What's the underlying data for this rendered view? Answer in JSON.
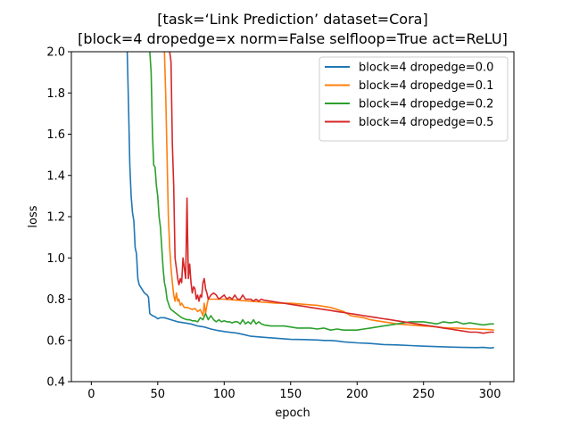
{
  "chart_data": {
    "type": "line",
    "title": "[task=‘Link Prediction’ dataset=Cora]",
    "subtitle": "[block=4 dropedge=x norm=False selfloop=True act=ReLU]",
    "xlabel": "epoch",
    "ylabel": "loss",
    "xlim": [
      -15,
      318
    ],
    "ylim": [
      0.4,
      2.0
    ],
    "xticks": [
      0,
      50,
      100,
      150,
      200,
      250,
      300
    ],
    "yticks": [
      0.4,
      0.6,
      0.8,
      1.0,
      1.2,
      1.4,
      1.6,
      1.8,
      2.0
    ],
    "ytick_labels": [
      "0.4",
      "0.6",
      "0.8",
      "1.0",
      "1.2",
      "1.4",
      "1.6",
      "1.8",
      "2.0"
    ],
    "grid": false,
    "legend_position": "top-right",
    "series": [
      {
        "name": "block=4 dropedge=0.0",
        "color": "#1f77b4",
        "points": [
          [
            27,
            2.0
          ],
          [
            28,
            1.75
          ],
          [
            29,
            1.45
          ],
          [
            30,
            1.3
          ],
          [
            31,
            1.22
          ],
          [
            32,
            1.18
          ],
          [
            33,
            1.05
          ],
          [
            34,
            1.02
          ],
          [
            35,
            0.9
          ],
          [
            36,
            0.87
          ],
          [
            38,
            0.85
          ],
          [
            40,
            0.83
          ],
          [
            42,
            0.82
          ],
          [
            43,
            0.81
          ],
          [
            44,
            0.73
          ],
          [
            46,
            0.72
          ],
          [
            48,
            0.715
          ],
          [
            50,
            0.705
          ],
          [
            52,
            0.71
          ],
          [
            55,
            0.71
          ],
          [
            60,
            0.7
          ],
          [
            65,
            0.69
          ],
          [
            70,
            0.685
          ],
          [
            75,
            0.68
          ],
          [
            80,
            0.67
          ],
          [
            85,
            0.665
          ],
          [
            90,
            0.655
          ],
          [
            95,
            0.648
          ],
          [
            100,
            0.643
          ],
          [
            110,
            0.635
          ],
          [
            115,
            0.628
          ],
          [
            120,
            0.62
          ],
          [
            130,
            0.615
          ],
          [
            140,
            0.61
          ],
          [
            150,
            0.605
          ],
          [
            160,
            0.604
          ],
          [
            170,
            0.602
          ],
          [
            175,
            0.6
          ],
          [
            180,
            0.6
          ],
          [
            185,
            0.597
          ],
          [
            190,
            0.593
          ],
          [
            200,
            0.588
          ],
          [
            210,
            0.585
          ],
          [
            220,
            0.58
          ],
          [
            230,
            0.578
          ],
          [
            240,
            0.575
          ],
          [
            250,
            0.572
          ],
          [
            260,
            0.57
          ],
          [
            270,
            0.568
          ],
          [
            280,
            0.566
          ],
          [
            290,
            0.565
          ],
          [
            295,
            0.566
          ],
          [
            300,
            0.563
          ],
          [
            303,
            0.565
          ]
        ]
      },
      {
        "name": "block=4 dropedge=0.1",
        "color": "#ff7f0e",
        "points": [
          [
            55,
            2.0
          ],
          [
            56,
            1.78
          ],
          [
            57,
            1.5
          ],
          [
            58,
            1.2
          ],
          [
            59,
            1.05
          ],
          [
            60,
            0.95
          ],
          [
            61,
            0.88
          ],
          [
            62,
            0.82
          ],
          [
            63,
            0.79
          ],
          [
            64,
            0.83
          ],
          [
            65,
            0.79
          ],
          [
            66,
            0.8
          ],
          [
            67,
            0.77
          ],
          [
            68,
            0.78
          ],
          [
            70,
            0.76
          ],
          [
            72,
            0.76
          ],
          [
            74,
            0.755
          ],
          [
            76,
            0.75
          ],
          [
            78,
            0.755
          ],
          [
            80,
            0.74
          ],
          [
            82,
            0.75
          ],
          [
            84,
            0.72
          ],
          [
            85,
            0.78
          ],
          [
            86,
            0.73
          ],
          [
            87,
            0.77
          ],
          [
            88,
            0.8
          ],
          [
            90,
            0.8
          ],
          [
            95,
            0.8
          ],
          [
            100,
            0.8
          ],
          [
            110,
            0.795
          ],
          [
            120,
            0.79
          ],
          [
            130,
            0.785
          ],
          [
            140,
            0.78
          ],
          [
            150,
            0.78
          ],
          [
            160,
            0.775
          ],
          [
            170,
            0.77
          ],
          [
            180,
            0.76
          ],
          [
            190,
            0.74
          ],
          [
            195,
            0.72
          ],
          [
            200,
            0.715
          ],
          [
            205,
            0.71
          ],
          [
            210,
            0.7
          ],
          [
            215,
            0.695
          ],
          [
            220,
            0.69
          ],
          [
            225,
            0.685
          ],
          [
            230,
            0.68
          ],
          [
            235,
            0.677
          ],
          [
            240,
            0.675
          ],
          [
            245,
            0.672
          ],
          [
            250,
            0.67
          ],
          [
            255,
            0.668
          ],
          [
            260,
            0.665
          ],
          [
            265,
            0.662
          ],
          [
            270,
            0.66
          ],
          [
            275,
            0.66
          ],
          [
            280,
            0.658
          ],
          [
            285,
            0.656
          ],
          [
            290,
            0.655
          ],
          [
            295,
            0.654
          ],
          [
            300,
            0.652
          ],
          [
            303,
            0.65
          ]
        ]
      },
      {
        "name": "block=4 dropedge=0.2",
        "color": "#2ca02c",
        "points": [
          [
            44,
            2.0
          ],
          [
            45,
            1.9
          ],
          [
            46,
            1.6
          ],
          [
            47,
            1.45
          ],
          [
            48,
            1.44
          ],
          [
            49,
            1.35
          ],
          [
            50,
            1.3
          ],
          [
            51,
            1.2
          ],
          [
            52,
            1.15
          ],
          [
            53,
            1.05
          ],
          [
            54,
            0.95
          ],
          [
            55,
            0.88
          ],
          [
            56,
            0.85
          ],
          [
            57,
            0.8
          ],
          [
            58,
            0.78
          ],
          [
            59,
            0.76
          ],
          [
            60,
            0.75
          ],
          [
            62,
            0.74
          ],
          [
            64,
            0.73
          ],
          [
            66,
            0.72
          ],
          [
            68,
            0.71
          ],
          [
            70,
            0.705
          ],
          [
            72,
            0.7
          ],
          [
            74,
            0.7
          ],
          [
            76,
            0.695
          ],
          [
            78,
            0.695
          ],
          [
            80,
            0.69
          ],
          [
            82,
            0.71
          ],
          [
            84,
            0.7
          ],
          [
            86,
            0.73
          ],
          [
            88,
            0.7
          ],
          [
            90,
            0.72
          ],
          [
            92,
            0.7
          ],
          [
            94,
            0.69
          ],
          [
            96,
            0.7
          ],
          [
            98,
            0.69
          ],
          [
            100,
            0.695
          ],
          [
            102,
            0.69
          ],
          [
            104,
            0.69
          ],
          [
            106,
            0.685
          ],
          [
            108,
            0.69
          ],
          [
            110,
            0.69
          ],
          [
            112,
            0.68
          ],
          [
            114,
            0.7
          ],
          [
            116,
            0.68
          ],
          [
            118,
            0.69
          ],
          [
            120,
            0.68
          ],
          [
            122,
            0.7
          ],
          [
            124,
            0.68
          ],
          [
            126,
            0.69
          ],
          [
            128,
            0.68
          ],
          [
            130,
            0.675
          ],
          [
            135,
            0.67
          ],
          [
            140,
            0.67
          ],
          [
            145,
            0.67
          ],
          [
            150,
            0.665
          ],
          [
            155,
            0.66
          ],
          [
            160,
            0.66
          ],
          [
            165,
            0.66
          ],
          [
            170,
            0.655
          ],
          [
            175,
            0.66
          ],
          [
            180,
            0.65
          ],
          [
            185,
            0.655
          ],
          [
            190,
            0.65
          ],
          [
            195,
            0.65
          ],
          [
            200,
            0.65
          ],
          [
            205,
            0.655
          ],
          [
            210,
            0.66
          ],
          [
            215,
            0.665
          ],
          [
            220,
            0.67
          ],
          [
            225,
            0.675
          ],
          [
            230,
            0.68
          ],
          [
            235,
            0.685
          ],
          [
            240,
            0.69
          ],
          [
            245,
            0.69
          ],
          [
            250,
            0.69
          ],
          [
            255,
            0.685
          ],
          [
            260,
            0.68
          ],
          [
            265,
            0.69
          ],
          [
            270,
            0.685
          ],
          [
            275,
            0.69
          ],
          [
            280,
            0.68
          ],
          [
            285,
            0.685
          ],
          [
            290,
            0.68
          ],
          [
            295,
            0.675
          ],
          [
            300,
            0.68
          ],
          [
            303,
            0.68
          ]
        ]
      },
      {
        "name": "block=4 dropedge=0.5",
        "color": "#d62728",
        "points": [
          [
            59,
            2.0
          ],
          [
            60,
            1.95
          ],
          [
            61,
            1.55
          ],
          [
            62,
            1.35
          ],
          [
            63,
            1.0
          ],
          [
            64,
            0.95
          ],
          [
            65,
            0.9
          ],
          [
            66,
            0.87
          ],
          [
            67,
            0.9
          ],
          [
            68,
            0.88
          ],
          [
            69,
            1.0
          ],
          [
            70,
            0.95
          ],
          [
            71,
            0.9
          ],
          [
            72,
            1.29
          ],
          [
            73,
            0.9
          ],
          [
            74,
            0.97
          ],
          [
            75,
            0.88
          ],
          [
            76,
            0.83
          ],
          [
            77,
            0.86
          ],
          [
            78,
            0.85
          ],
          [
            79,
            0.8
          ],
          [
            80,
            0.82
          ],
          [
            81,
            0.79
          ],
          [
            82,
            0.82
          ],
          [
            83,
            0.81
          ],
          [
            84,
            0.88
          ],
          [
            85,
            0.9
          ],
          [
            86,
            0.85
          ],
          [
            87,
            0.83
          ],
          [
            88,
            0.8
          ],
          [
            90,
            0.82
          ],
          [
            92,
            0.83
          ],
          [
            94,
            0.82
          ],
          [
            96,
            0.8
          ],
          [
            98,
            0.81
          ],
          [
            100,
            0.82
          ],
          [
            102,
            0.8
          ],
          [
            104,
            0.81
          ],
          [
            106,
            0.8
          ],
          [
            108,
            0.82
          ],
          [
            110,
            0.8
          ],
          [
            112,
            0.8
          ],
          [
            114,
            0.82
          ],
          [
            116,
            0.8
          ],
          [
            118,
            0.8
          ],
          [
            120,
            0.8
          ],
          [
            122,
            0.79
          ],
          [
            124,
            0.8
          ],
          [
            126,
            0.79
          ],
          [
            128,
            0.8
          ],
          [
            130,
            0.795
          ],
          [
            135,
            0.79
          ],
          [
            140,
            0.785
          ],
          [
            145,
            0.78
          ],
          [
            150,
            0.775
          ],
          [
            155,
            0.77
          ],
          [
            160,
            0.765
          ],
          [
            165,
            0.76
          ],
          [
            170,
            0.755
          ],
          [
            175,
            0.75
          ],
          [
            180,
            0.745
          ],
          [
            185,
            0.74
          ],
          [
            190,
            0.735
          ],
          [
            195,
            0.73
          ],
          [
            200,
            0.725
          ],
          [
            205,
            0.72
          ],
          [
            210,
            0.715
          ],
          [
            215,
            0.71
          ],
          [
            220,
            0.705
          ],
          [
            225,
            0.7
          ],
          [
            230,
            0.695
          ],
          [
            235,
            0.69
          ],
          [
            240,
            0.685
          ],
          [
            245,
            0.68
          ],
          [
            250,
            0.675
          ],
          [
            255,
            0.67
          ],
          [
            260,
            0.665
          ],
          [
            265,
            0.66
          ],
          [
            270,
            0.655
          ],
          [
            275,
            0.65
          ],
          [
            280,
            0.645
          ],
          [
            285,
            0.64
          ],
          [
            290,
            0.64
          ],
          [
            295,
            0.635
          ],
          [
            300,
            0.64
          ],
          [
            303,
            0.64
          ]
        ]
      }
    ]
  }
}
